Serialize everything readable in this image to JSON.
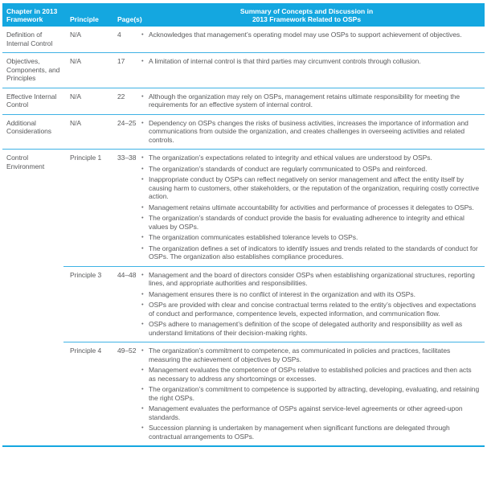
{
  "colors": {
    "accent": "#14A7E0",
    "line": "#3FB2E5",
    "header_text": "#FFFFFF",
    "body_text": "#58595B",
    "bullet": "#6D6E71"
  },
  "table": {
    "bullet_glyph": "•",
    "header": {
      "chapter": "Chapter in 2013\nFramework",
      "principle": "Principle",
      "pages": "Page(s)",
      "summary": "Summary of Concepts and Discussion in\n2013 Framework Related to OSPs"
    },
    "rows": [
      {
        "chapter": "Definition of Internal Control",
        "sections": [
          {
            "principle": "N/A",
            "pages": "4",
            "bullets": [
              "Acknowledges that management’s operating model may use OSPs to support achievement of objectives."
            ]
          }
        ]
      },
      {
        "chapter": "Objectives, Components, and Principles",
        "sections": [
          {
            "principle": "N/A",
            "pages": "17",
            "bullets": [
              "A limitation of internal control is that third parties may circumvent controls through collusion."
            ]
          }
        ]
      },
      {
        "chapter": "Effective Internal Control",
        "sections": [
          {
            "principle": "N/A",
            "pages": "22",
            "bullets": [
              "Although the organization may rely on OSPs, management retains ultimate responsibility for meeting the requirements for an effective system of internal control."
            ]
          }
        ]
      },
      {
        "chapter": "Additional Considerations",
        "sections": [
          {
            "principle": "N/A",
            "pages": "24–25",
            "bullets": [
              "Dependency on OSPs changes the risks of business activities, increases the importance of information and communications from outside the organization, and creates challenges in overseeing activities and related controls."
            ]
          }
        ]
      },
      {
        "chapter": "Control Environment",
        "sections": [
          {
            "principle": "Principle 1",
            "pages": "33–38",
            "bullets": [
              "The organization’s expectations related to integrity and ethical values are understood by OSPs.",
              "The organization’s standards of conduct are regularly communicated to OSPs and reinforced.",
              "Inappropriate conduct by OSPs can reflect negatively on senior management and affect the entity itself by causing harm to customers, other stakeholders, or the reputation of the organization, requiring costly corrective action.",
              "Management retains ultimate accountability for activities and performance of processes it delegates to OSPs.",
              "The organization’s standards of conduct provide the basis for evaluating adherence to integrity and ethical values by OSPs.",
              "The organization communicates established tolerance levels to OSPs.",
              "The organization defines a set of indicators to identify issues and trends related to the standards of conduct for OSPs. The organization also establishes compliance procedures."
            ]
          },
          {
            "principle": "Principle 3",
            "pages": "44–48",
            "bullets": [
              "Management and the board of directors consider OSPs when establishing organizational structures, reporting lines, and appropriate authorities and responsibilities.",
              "Management ensures there is no conflict of interest in the organization and with its OSPs.",
              "OSPs are provided with clear and concise contractual terms related to the entity’s objectives and expectations of conduct and performance, compentence levels, expected information, and communication flow.",
              "OSPs adhere to management’s definition of the scope of delegated authority and responsibility as well as understand limitations of their decision-making rights."
            ]
          },
          {
            "principle": "Principle 4",
            "pages": "49–52",
            "bullets": [
              "The organization’s commitment to competence, as communicated in policies and practices, facilitates measuring the achievement of objectives by OSPs.",
              "Management evaluates the competence of OSPs relative to established policies and practices and then acts as necessary to address any shortcomings or excesses.",
              "The organization’s commitment to competence is supported by attracting, developing, evaluating, and retaining the right OSPs.",
              "Management evaluates the performance of OSPs against service-level agreements or other agreed-upon standards.",
              "Succession planning is undertaken by management when significant functions are delegated through contractual arrangements to OSPs."
            ]
          }
        ]
      }
    ]
  }
}
